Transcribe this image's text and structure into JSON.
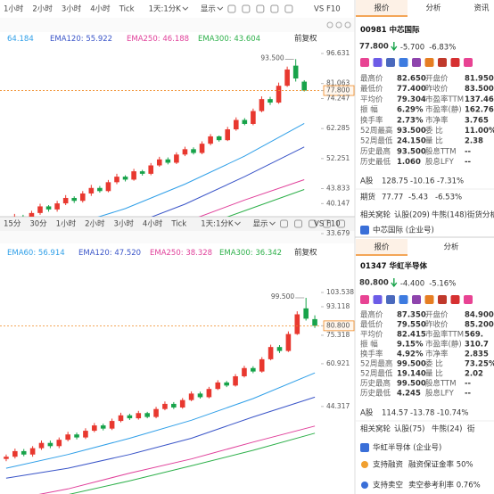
{
  "top": {
    "toolbar": {
      "periods": [
        "1小时",
        "2小时",
        "3小时",
        "4小时",
        "Tick"
      ],
      "period_select": "1天:1分K",
      "display": "显示",
      "vs": "VS",
      "f10": "F10"
    },
    "tabs": [
      "报价",
      "分析",
      "资讯"
    ],
    "chart": {
      "log_scale": true,
      "ylim": [
        33.679,
        96.631
      ],
      "yticks": [
        96.631,
        81.063,
        {
          "value": 77.8,
          "label": "77.800"
        },
        74.247,
        62.285,
        52.251,
        43.833,
        40.147,
        33.679
      ],
      "price_line": 77.8,
      "high_label": {
        "value": 93.5,
        "label": "93.500"
      },
      "adjust": "前复权",
      "up_color": "#e8382f",
      "down_color": "#17a34a",
      "candles": {
        "open": [
          35.5,
          36.0,
          37.2,
          36.5,
          38.0,
          39.5,
          38.8,
          40.2,
          41.5,
          40.8,
          42.6,
          44.0,
          43.2,
          45.5,
          47.0,
          46.2,
          48.5,
          47.8,
          50.2,
          52.0,
          51.0,
          53.5,
          55.2,
          54.0,
          57.0,
          59.5,
          58.2,
          62.0,
          65.5,
          64.0,
          69.0,
          74.0,
          72.5,
          80.0,
          90.0,
          81.95
        ],
        "close": [
          36.0,
          37.2,
          36.5,
          38.0,
          39.5,
          38.8,
          40.2,
          41.5,
          40.8,
          42.6,
          44.0,
          43.2,
          45.5,
          47.0,
          46.2,
          48.5,
          47.8,
          50.2,
          52.0,
          51.0,
          53.5,
          55.2,
          54.0,
          57.0,
          59.5,
          58.2,
          62.0,
          65.5,
          64.0,
          69.0,
          74.0,
          72.5,
          80.0,
          88.0,
          83.5,
          77.8
        ],
        "high": [
          36.6,
          37.8,
          37.6,
          38.5,
          40.1,
          39.8,
          40.8,
          42.2,
          41.9,
          43.2,
          44.8,
          44.5,
          46.1,
          47.8,
          47.4,
          49.2,
          48.9,
          50.9,
          52.8,
          52.6,
          54.2,
          56.0,
          55.8,
          57.8,
          60.3,
          59.8,
          62.9,
          66.5,
          66.2,
          70.0,
          75.2,
          75.0,
          81.5,
          89.5,
          93.5,
          82.65
        ],
        "low": [
          35.0,
          35.6,
          36.0,
          36.0,
          37.6,
          38.3,
          38.3,
          39.8,
          40.3,
          40.4,
          42.0,
          42.8,
          42.9,
          45.0,
          45.7,
          45.9,
          47.3,
          47.4,
          49.8,
          50.5,
          50.6,
          53.0,
          53.5,
          53.6,
          56.5,
          57.7,
          57.9,
          61.5,
          63.5,
          63.5,
          68.5,
          71.5,
          72.0,
          79.5,
          82.0,
          77.4
        ]
      },
      "series": [
        {
          "color": "#2f9fe8",
          "value": "64.184",
          "values": [
            32,
            35,
            39,
            45,
            53,
            64.184
          ]
        },
        {
          "name": "EMA120:",
          "color": "#3a55c8",
          "value": "55.922",
          "values": [
            30,
            32,
            35,
            40,
            47,
            55.922
          ]
        },
        {
          "name": "EMA250:",
          "color": "#e0409a",
          "value": "46.188",
          "values": [
            27,
            29,
            32,
            36,
            41,
            46.188
          ]
        },
        {
          "name": "EMA300:",
          "color": "#2db04a",
          "value": "43.604",
          "values": [
            26,
            28,
            30.5,
            34,
            38.5,
            43.604
          ]
        }
      ]
    },
    "quote": {
      "code": "00981",
      "name": "中芯国际",
      "price": "77.800",
      "change": "-5.700",
      "pct": "-6.83%",
      "rows": [
        [
          {
            "label": "最高价",
            "value": "82.650",
            "color": "#17a34a"
          },
          {
            "label": "开盘价",
            "value": "81.950",
            "color": "#17a34a"
          }
        ],
        [
          {
            "label": "最低价",
            "value": "77.400",
            "color": "#17a34a"
          },
          {
            "label": "昨收价",
            "value": "83.500",
            "color": "#333333"
          }
        ],
        [
          {
            "label": "平均价",
            "value": "79.304",
            "color": "#17a34a"
          },
          {
            "label": "市盈率TTM",
            "value": "137.46",
            "color": "#333333"
          }
        ],
        [
          {
            "label": "振 幅",
            "value": "6.29%",
            "color": "#333333"
          },
          {
            "label": "市盈率(静)",
            "value": "162.76",
            "color": "#333333"
          }
        ],
        [
          {
            "label": "换手率",
            "value": "2.73%",
            "color": "#333333"
          },
          {
            "label": "市净率",
            "value": "3.765",
            "color": "#333333"
          }
        ],
        [
          {
            "label": "52周最高",
            "value": "93.500",
            "color": "#e8382f"
          },
          {
            "label": "委 比",
            "value": "11.00%",
            "color": "#e8382f"
          }
        ],
        [
          {
            "label": "52周最低",
            "value": "24.150",
            "color": "#17a34a"
          },
          {
            "label": "量 比",
            "value": "2.38",
            "color": "#333333"
          }
        ],
        [
          {
            "label": "历史最高",
            "value": "93.500",
            "color": "#e8382f"
          },
          {
            "label": "股息TTM",
            "value": "--",
            "color": "#333333"
          }
        ],
        [
          {
            "label": "历史最低",
            "value": "1.060",
            "color": "#17a34a"
          },
          {
            "label": "股息LFY",
            "value": "--",
            "color": "#333333"
          }
        ]
      ],
      "a_share": [
        "A股",
        "128.75",
        "-10.16",
        "-7.31%"
      ],
      "futures": [
        "期货",
        "77.77",
        "-5.43",
        "-6.53%"
      ],
      "warrants": [
        "相关窝轮",
        "认股(209)",
        "牛熊(148)",
        "街货分析"
      ],
      "company": "中芯国际 (企业号)"
    }
  },
  "bottom": {
    "toolbar": {
      "periods": [
        "15分",
        "30分",
        "1小时",
        "2小时",
        "3小时",
        "4小时",
        "Tick"
      ],
      "period_select": "1天:1分K",
      "display": "显示",
      "vs": "VS",
      "f10": "F10"
    },
    "tabs": [
      "报价",
      "分析"
    ],
    "chart": {
      "log_scale": true,
      "ylim": [
        28.96,
        103.538
      ],
      "yticks": [
        103.538,
        93.118,
        {
          "value": 80.8,
          "label": "80.800"
        },
        75.318,
        60.921,
        44.317
      ],
      "price_line": 80.8,
      "high_label": {
        "value": 99.5,
        "label": "99.500"
      },
      "adjust": "前复权",
      "up_color": "#e8382f",
      "down_color": "#17a34a",
      "candles": {
        "open": [
          30.0,
          30.5,
          31.8,
          31.0,
          32.5,
          33.8,
          33.0,
          34.6,
          36.0,
          35.2,
          37.0,
          38.5,
          37.6,
          39.8,
          41.5,
          40.6,
          42.2,
          41.0,
          43.5,
          45.2,
          44.0,
          46.5,
          48.8,
          47.5,
          50.5,
          53.0,
          51.8,
          55.5,
          59.0,
          57.5,
          63.0,
          69.0,
          67.0,
          76.0,
          92.0,
          84.9
        ],
        "close": [
          30.5,
          31.8,
          31.0,
          32.5,
          33.8,
          33.0,
          34.6,
          36.0,
          35.2,
          37.0,
          38.5,
          37.6,
          39.8,
          41.5,
          40.6,
          42.2,
          41.0,
          43.5,
          45.2,
          44.0,
          46.5,
          48.8,
          47.5,
          50.5,
          53.0,
          51.8,
          55.5,
          59.0,
          57.5,
          63.0,
          69.0,
          67.0,
          76.0,
          88.0,
          85.2,
          80.8
        ],
        "high": [
          31.0,
          32.4,
          32.3,
          33.0,
          34.4,
          34.4,
          35.2,
          36.7,
          36.5,
          37.7,
          39.2,
          39.0,
          40.5,
          42.3,
          42.0,
          42.9,
          42.6,
          44.2,
          46.0,
          45.8,
          47.2,
          49.6,
          49.5,
          51.3,
          53.9,
          53.6,
          56.4,
          60.0,
          59.8,
          64.0,
          70.2,
          70.0,
          77.5,
          90.0,
          99.5,
          87.35
        ],
        "low": [
          29.5,
          30.1,
          30.6,
          30.5,
          32.1,
          32.5,
          32.5,
          34.2,
          34.7,
          34.8,
          36.6,
          37.1,
          37.2,
          39.4,
          40.1,
          40.2,
          40.6,
          40.6,
          43.1,
          43.5,
          43.6,
          46.1,
          47.0,
          47.1,
          50.1,
          51.2,
          51.4,
          55.0,
          56.8,
          57.0,
          62.5,
          66.0,
          66.5,
          75.5,
          84.0,
          79.55
        ]
      },
      "series": [
        {
          "name": "EMA60:",
          "color": "#2f9fe8",
          "value": "56.914",
          "values": [
            28,
            31,
            35,
            40,
            47,
            56.914
          ]
        },
        {
          "name": "EMA120:",
          "color": "#3a55c8",
          "value": "47.520",
          "values": [
            26,
            28,
            31,
            35,
            41,
            47.52
          ]
        },
        {
          "name": "EMA250:",
          "color": "#e0409a",
          "value": "38.328",
          "values": [
            22,
            24,
            27,
            30,
            34,
            38.328
          ]
        },
        {
          "name": "EMA300:",
          "color": "#2db04a",
          "value": "36.342",
          "values": [
            21,
            23,
            25.5,
            28.5,
            32,
            36.342
          ]
        }
      ]
    },
    "quote": {
      "code": "01347",
      "name": "华虹半导体",
      "price": "80.800",
      "change": "-4.400",
      "pct": "-5.16%",
      "rows": [
        [
          {
            "label": "最高价",
            "value": "87.350",
            "color": "#e8382f"
          },
          {
            "label": "开盘价",
            "value": "84.900",
            "color": "#17a34a"
          }
        ],
        [
          {
            "label": "最低价",
            "value": "79.550",
            "color": "#17a34a"
          },
          {
            "label": "昨收价",
            "value": "85.200",
            "color": "#333333"
          }
        ],
        [
          {
            "label": "平均价",
            "value": "82.415",
            "color": "#17a34a"
          },
          {
            "label": "市盈率TTM",
            "value": "569.",
            "color": "#333333"
          }
        ],
        [
          {
            "label": "振 幅",
            "value": "9.15%",
            "color": "#333333"
          },
          {
            "label": "市盈率(静)",
            "value": "310.7",
            "color": "#333333"
          }
        ],
        [
          {
            "label": "换手率",
            "value": "4.92%",
            "color": "#333333"
          },
          {
            "label": "市净率",
            "value": "2.835",
            "color": "#333333"
          }
        ],
        [
          {
            "label": "52周最高",
            "value": "99.500",
            "color": "#e8382f"
          },
          {
            "label": "委 比",
            "value": "73.25%",
            "color": "#e8382f"
          }
        ],
        [
          {
            "label": "52周最低",
            "value": "19.140",
            "color": "#17a34a"
          },
          {
            "label": "量 比",
            "value": "2.02",
            "color": "#333333"
          }
        ],
        [
          {
            "label": "历史最高",
            "value": "99.500",
            "color": "#e8382f"
          },
          {
            "label": "股息TTM",
            "value": "--",
            "color": "#333333"
          }
        ],
        [
          {
            "label": "历史最低",
            "value": "4.245",
            "color": "#17a34a"
          },
          {
            "label": "股息LFY",
            "value": "--",
            "color": "#333333"
          }
        ]
      ],
      "a_share": [
        "A股",
        "114.57",
        "-13.78",
        "-10.74%"
      ],
      "warrants": [
        "相关窝轮",
        "认股(75)",
        "牛熊(24)",
        "街"
      ],
      "company": "华虹半导体 (企业号)",
      "margin": [
        "支持融资",
        "融资保证金率 50%"
      ],
      "short": [
        "支持卖空",
        "卖空参考利率 0.76%"
      ]
    }
  }
}
